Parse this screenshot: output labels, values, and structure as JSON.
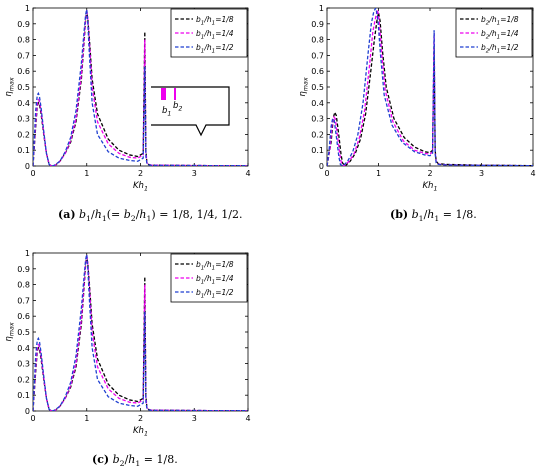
{
  "chart_data": [
    {
      "type": "line",
      "caption_tag": "(a)",
      "caption_text": "b1/h1(= b2/h1) = 1/8, 1/4, 1/2.",
      "xlabel": "Kh1",
      "ylabel": "ηmax",
      "xlim": [
        0,
        4
      ],
      "ylim": [
        0,
        1
      ],
      "xticks": [
        "0",
        "1",
        "2",
        "3",
        "4"
      ],
      "yticks": [
        "0",
        "0.1",
        "0.2",
        "0.3",
        "0.4",
        "0.5",
        "0.6",
        "0.7",
        "0.8",
        "0.9",
        "1"
      ],
      "grid": false,
      "legend_position": "top-right",
      "inset": {
        "labels": [
          "b1",
          "b2"
        ]
      },
      "series": [
        {
          "name": "b1/h1=1/8",
          "color": "#000000",
          "x": [
            0,
            0.05,
            0.08,
            0.1,
            0.12,
            0.15,
            0.2,
            0.25,
            0.3,
            0.35,
            0.4,
            0.5,
            0.6,
            0.7,
            0.8,
            0.9,
            0.95,
            0.98,
            1.0,
            1.02,
            1.05,
            1.1,
            1.2,
            1.4,
            1.6,
            1.8,
            1.95,
            2.05,
            2.08,
            2.1,
            2.12,
            2.15,
            2.2,
            2.5,
            3,
            3.5,
            4
          ],
          "y": [
            0,
            0.25,
            0.38,
            0.4,
            0.39,
            0.33,
            0.2,
            0.08,
            0.01,
            0,
            0,
            0.03,
            0.08,
            0.15,
            0.28,
            0.55,
            0.78,
            0.93,
            0.98,
            0.93,
            0.8,
            0.55,
            0.33,
            0.17,
            0.1,
            0.07,
            0.06,
            0.08,
            0.85,
            0.1,
            0.02,
            0.01,
            0.005,
            0.005,
            0.003,
            0.002,
            0.002
          ]
        },
        {
          "name": "b1/h1=1/4",
          "color": "#ee00ee",
          "x": [
            0,
            0.05,
            0.08,
            0.1,
            0.12,
            0.15,
            0.2,
            0.25,
            0.3,
            0.35,
            0.4,
            0.5,
            0.6,
            0.7,
            0.8,
            0.9,
            0.95,
            0.98,
            1.0,
            1.02,
            1.05,
            1.1,
            1.2,
            1.4,
            1.6,
            1.8,
            1.95,
            2.05,
            2.08,
            2.1,
            2.12,
            2.15,
            2.2,
            2.5,
            3,
            3.5,
            4
          ],
          "y": [
            0,
            0.28,
            0.4,
            0.42,
            0.41,
            0.35,
            0.21,
            0.08,
            0.01,
            0,
            0,
            0.03,
            0.08,
            0.16,
            0.3,
            0.58,
            0.8,
            0.94,
            0.99,
            0.93,
            0.78,
            0.5,
            0.28,
            0.14,
            0.08,
            0.055,
            0.05,
            0.07,
            0.8,
            0.09,
            0.02,
            0.01,
            0.005,
            0.005,
            0.003,
            0.002,
            0.002
          ]
        },
        {
          "name": "b1/h1=1/2",
          "color": "#1f3fd0",
          "x": [
            0,
            0.05,
            0.08,
            0.1,
            0.12,
            0.15,
            0.2,
            0.25,
            0.3,
            0.35,
            0.4,
            0.5,
            0.6,
            0.7,
            0.8,
            0.9,
            0.95,
            0.98,
            1.0,
            1.02,
            1.05,
            1.1,
            1.2,
            1.4,
            1.6,
            1.8,
            1.95,
            2.05,
            2.08,
            2.1,
            2.12,
            2.15,
            2.2,
            2.5,
            3,
            3.5,
            4
          ],
          "y": [
            0,
            0.35,
            0.45,
            0.46,
            0.44,
            0.37,
            0.22,
            0.08,
            0.01,
            0,
            0.005,
            0.03,
            0.09,
            0.18,
            0.35,
            0.65,
            0.85,
            0.96,
            0.99,
            0.9,
            0.7,
            0.4,
            0.2,
            0.09,
            0.05,
            0.035,
            0.03,
            0.05,
            0.63,
            0.06,
            0.015,
            0.008,
            0.004,
            0.004,
            0.003,
            0.002,
            0.002
          ]
        }
      ]
    },
    {
      "type": "line",
      "caption_tag": "(b)",
      "caption_text": "b1/h1 = 1/8.",
      "xlabel": "Kh1",
      "ylabel": "ηmax",
      "xlim": [
        0,
        4
      ],
      "ylim": [
        0,
        1
      ],
      "xticks": [
        "0",
        "1",
        "2",
        "3",
        "4"
      ],
      "yticks": [
        "0",
        "0.1",
        "0.2",
        "0.3",
        "0.4",
        "0.5",
        "0.6",
        "0.7",
        "0.8",
        "0.9",
        "1"
      ],
      "grid": false,
      "legend_position": "top-right",
      "series": [
        {
          "name": "b2/h1=1/8",
          "color": "#000000",
          "x": [
            0,
            0.08,
            0.12,
            0.15,
            0.18,
            0.22,
            0.27,
            0.3,
            0.35,
            0.45,
            0.55,
            0.65,
            0.75,
            0.85,
            0.92,
            0.97,
            1.0,
            1.03,
            1.08,
            1.15,
            1.3,
            1.5,
            1.7,
            1.9,
            2.0,
            2.05,
            2.08,
            2.1,
            2.12,
            2.16,
            2.3,
            2.6,
            3,
            3.5,
            4
          ],
          "y": [
            0,
            0.15,
            0.3,
            0.34,
            0.32,
            0.22,
            0.08,
            0.02,
            0,
            0.03,
            0.08,
            0.17,
            0.33,
            0.6,
            0.8,
            0.92,
            0.97,
            0.92,
            0.72,
            0.5,
            0.3,
            0.18,
            0.12,
            0.09,
            0.085,
            0.1,
            0.75,
            0.1,
            0.03,
            0.015,
            0.01,
            0.008,
            0.005,
            0.004,
            0.002
          ]
        },
        {
          "name": "b2/h1=1/4",
          "color": "#ee00ee",
          "x": [
            0,
            0.06,
            0.1,
            0.13,
            0.16,
            0.2,
            0.25,
            0.28,
            0.33,
            0.43,
            0.53,
            0.63,
            0.73,
            0.83,
            0.89,
            0.95,
            0.98,
            1.01,
            1.06,
            1.13,
            1.28,
            1.48,
            1.7,
            1.9,
            2.0,
            2.05,
            2.08,
            2.1,
            2.12,
            2.16,
            2.3,
            2.6,
            3,
            3.5,
            4
          ],
          "y": [
            0,
            0.12,
            0.27,
            0.31,
            0.3,
            0.2,
            0.07,
            0.02,
            0,
            0.03,
            0.08,
            0.18,
            0.35,
            0.65,
            0.85,
            0.95,
            0.99,
            0.93,
            0.72,
            0.48,
            0.28,
            0.16,
            0.1,
            0.08,
            0.075,
            0.09,
            0.84,
            0.09,
            0.025,
            0.012,
            0.008,
            0.006,
            0.004,
            0.003,
            0.002
          ]
        },
        {
          "name": "b2/h1=1/2",
          "color": "#1f3fd0",
          "x": [
            0,
            0.04,
            0.08,
            0.11,
            0.14,
            0.18,
            0.23,
            0.26,
            0.31,
            0.4,
            0.5,
            0.6,
            0.7,
            0.8,
            0.86,
            0.91,
            0.95,
            0.99,
            1.04,
            1.11,
            1.26,
            1.46,
            1.7,
            1.9,
            2.0,
            2.05,
            2.08,
            2.1,
            2.12,
            2.16,
            2.3,
            2.6,
            3,
            3.5,
            4
          ],
          "y": [
            0,
            0.1,
            0.25,
            0.3,
            0.29,
            0.19,
            0.06,
            0.01,
            0,
            0.03,
            0.09,
            0.2,
            0.4,
            0.72,
            0.9,
            0.98,
            1.0,
            0.92,
            0.7,
            0.45,
            0.26,
            0.15,
            0.09,
            0.07,
            0.065,
            0.08,
            0.86,
            0.08,
            0.02,
            0.01,
            0.007,
            0.005,
            0.004,
            0.003,
            0.002
          ]
        }
      ]
    },
    {
      "type": "line",
      "caption_tag": "(c)",
      "caption_text": "b2/h1 = 1/8.",
      "xlabel": "Kh1",
      "ylabel": "ηmax",
      "xlim": [
        0,
        4
      ],
      "ylim": [
        0,
        1
      ],
      "xticks": [
        "0",
        "1",
        "2",
        "3",
        "4"
      ],
      "yticks": [
        "0",
        "0.1",
        "0.2",
        "0.3",
        "0.4",
        "0.5",
        "0.6",
        "0.7",
        "0.8",
        "0.9",
        "1"
      ],
      "grid": false,
      "legend_position": "top-right",
      "series": [
        {
          "name": "b1/h1=1/8",
          "color": "#000000",
          "x": [
            0,
            0.05,
            0.08,
            0.1,
            0.12,
            0.15,
            0.2,
            0.25,
            0.3,
            0.35,
            0.4,
            0.5,
            0.6,
            0.7,
            0.8,
            0.9,
            0.95,
            0.98,
            1.0,
            1.02,
            1.05,
            1.1,
            1.2,
            1.4,
            1.6,
            1.8,
            1.95,
            2.05,
            2.08,
            2.1,
            2.12,
            2.15,
            2.2,
            2.5,
            3,
            3.5,
            4
          ],
          "y": [
            0,
            0.25,
            0.38,
            0.4,
            0.39,
            0.33,
            0.2,
            0.08,
            0.01,
            0,
            0,
            0.03,
            0.08,
            0.15,
            0.28,
            0.55,
            0.78,
            0.93,
            0.98,
            0.93,
            0.8,
            0.55,
            0.33,
            0.17,
            0.1,
            0.07,
            0.06,
            0.08,
            0.85,
            0.1,
            0.02,
            0.01,
            0.005,
            0.005,
            0.003,
            0.002,
            0.002
          ]
        },
        {
          "name": "b1/h1=1/4",
          "color": "#ee00ee",
          "x": [
            0,
            0.05,
            0.08,
            0.1,
            0.12,
            0.15,
            0.2,
            0.25,
            0.3,
            0.35,
            0.4,
            0.5,
            0.6,
            0.7,
            0.8,
            0.9,
            0.95,
            0.98,
            1.0,
            1.02,
            1.05,
            1.1,
            1.2,
            1.4,
            1.6,
            1.8,
            1.95,
            2.05,
            2.08,
            2.1,
            2.12,
            2.15,
            2.2,
            2.5,
            3,
            3.5,
            4
          ],
          "y": [
            0,
            0.28,
            0.4,
            0.42,
            0.41,
            0.35,
            0.21,
            0.08,
            0.01,
            0,
            0,
            0.03,
            0.08,
            0.16,
            0.3,
            0.58,
            0.8,
            0.94,
            0.99,
            0.93,
            0.78,
            0.5,
            0.28,
            0.14,
            0.08,
            0.055,
            0.05,
            0.07,
            0.8,
            0.09,
            0.02,
            0.01,
            0.005,
            0.005,
            0.003,
            0.002,
            0.002
          ]
        },
        {
          "name": "b1/h1=1/2",
          "color": "#1f3fd0",
          "x": [
            0,
            0.05,
            0.08,
            0.1,
            0.12,
            0.15,
            0.2,
            0.25,
            0.3,
            0.35,
            0.4,
            0.5,
            0.6,
            0.7,
            0.8,
            0.9,
            0.95,
            0.98,
            1.0,
            1.02,
            1.05,
            1.1,
            1.2,
            1.4,
            1.6,
            1.8,
            1.95,
            2.05,
            2.08,
            2.1,
            2.12,
            2.15,
            2.2,
            2.5,
            3,
            3.5,
            4
          ],
          "y": [
            0,
            0.35,
            0.45,
            0.46,
            0.44,
            0.37,
            0.22,
            0.08,
            0.01,
            0,
            0.005,
            0.03,
            0.09,
            0.18,
            0.35,
            0.65,
            0.85,
            0.96,
            0.99,
            0.9,
            0.7,
            0.4,
            0.2,
            0.09,
            0.05,
            0.035,
            0.03,
            0.05,
            0.63,
            0.06,
            0.015,
            0.008,
            0.004,
            0.004,
            0.003,
            0.002,
            0.002
          ]
        }
      ]
    }
  ]
}
